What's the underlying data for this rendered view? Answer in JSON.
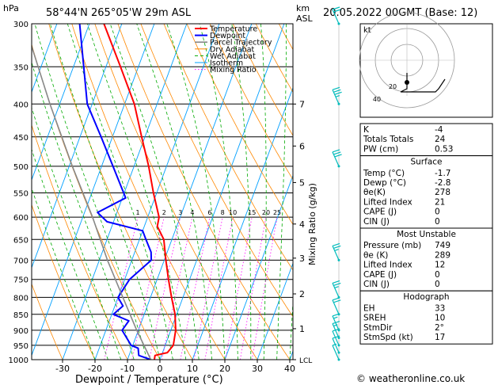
{
  "header": {
    "pressure_unit": "hPa",
    "location": "58°44'N 265°05'W 29m ASL",
    "km_label": "km",
    "asl_label": "ASL",
    "datetime": "20.05.2022 00GMT (Base: 12)"
  },
  "footer": {
    "credit": "© weatheronline.co.uk"
  },
  "colors": {
    "temperature": "#ff0000",
    "dewpoint": "#0000ff",
    "parcel": "#888888",
    "dry_adiabat": "#ff8800",
    "wet_adiabat": "#00aa00",
    "isotherm": "#00a0ff",
    "mixing_ratio": "#ff00ff",
    "wind": "#00bbbb"
  },
  "chart_data": {
    "type": "line",
    "title": "",
    "xlabel": "Dewpoint / Temperature (°C)",
    "ylabel_right": "Mixing Ratio (g/kg)",
    "x_range": [
      -35,
      40
    ],
    "y_range_hpa": [
      1000,
      300
    ],
    "y_scale": "log-pressure",
    "x_ticks": [
      -30,
      -20,
      -10,
      0,
      10,
      20,
      30,
      40
    ],
    "x_tick_labels": [
      "-30",
      "-20",
      "-10",
      "0",
      "10",
      "20",
      "30",
      "40"
    ],
    "pressure_levels": [
      300,
      350,
      400,
      450,
      500,
      550,
      600,
      650,
      700,
      750,
      800,
      850,
      900,
      950,
      1000
    ],
    "pressure_labels": [
      "300",
      "350",
      "400",
      "450",
      "500",
      "550",
      "600",
      "650",
      "700",
      "750",
      "800",
      "850",
      "900",
      "950",
      "1000"
    ],
    "km_ticks": [
      {
        "label": "7",
        "p": 400
      },
      {
        "label": "6",
        "p": 465
      },
      {
        "label": "5",
        "p": 530
      },
      {
        "label": "4",
        "p": 615
      },
      {
        "label": "3",
        "p": 695
      },
      {
        "label": "2",
        "p": 790
      },
      {
        "label": "1",
        "p": 895
      },
      {
        "label": "LCL",
        "p": 1000
      }
    ],
    "mixing_ratio_labels": [
      {
        "label": "1",
        "value": 1
      },
      {
        "label": "2",
        "value": 2
      },
      {
        "label": "3",
        "value": 3
      },
      {
        "label": "4",
        "value": 4
      },
      {
        "label": "6",
        "value": 6
      },
      {
        "label": "8",
        "value": 8
      },
      {
        "label": "10",
        "value": 10
      },
      {
        "label": "15",
        "value": 15
      },
      {
        "label": "20",
        "value": 20
      },
      {
        "label": "25",
        "value": 25
      }
    ],
    "legend": [
      "Temperature",
      "Dewpoint",
      "Parcel Trajectory",
      "Dry Adiabat",
      "Wet Adiabat",
      "Isotherm",
      "Mixing Ratio"
    ],
    "legend_position": "top-right",
    "series": [
      {
        "name": "Temperature",
        "points": [
          {
            "p": 1000,
            "t": -1.7
          },
          {
            "p": 985,
            "t": -2.0
          },
          {
            "p": 975,
            "t": 1.5
          },
          {
            "p": 950,
            "t": 2.5
          },
          {
            "p": 900,
            "t": 1.5
          },
          {
            "p": 850,
            "t": -0.5
          },
          {
            "p": 800,
            "t": -3.5
          },
          {
            "p": 750,
            "t": -6.5
          },
          {
            "p": 700,
            "t": -9.5
          },
          {
            "p": 650,
            "t": -12.5
          },
          {
            "p": 620,
            "t": -16.0
          },
          {
            "p": 600,
            "t": -16.5
          },
          {
            "p": 550,
            "t": -21.0
          },
          {
            "p": 500,
            "t": -25.5
          },
          {
            "p": 450,
            "t": -31.0
          },
          {
            "p": 400,
            "t": -37.0
          },
          {
            "p": 350,
            "t": -45.5
          },
          {
            "p": 300,
            "t": -55.5
          }
        ]
      },
      {
        "name": "Dewpoint",
        "points": [
          {
            "p": 1000,
            "t": -2.8
          },
          {
            "p": 985,
            "t": -7.0
          },
          {
            "p": 960,
            "t": -8.0
          },
          {
            "p": 950,
            "t": -10.5
          },
          {
            "p": 900,
            "t": -15.0
          },
          {
            "p": 870,
            "t": -14.0
          },
          {
            "p": 850,
            "t": -19.5
          },
          {
            "p": 825,
            "t": -17.5
          },
          {
            "p": 800,
            "t": -20.0
          },
          {
            "p": 750,
            "t": -18.5
          },
          {
            "p": 700,
            "t": -14.0
          },
          {
            "p": 680,
            "t": -15.0
          },
          {
            "p": 650,
            "t": -18.0
          },
          {
            "p": 630,
            "t": -20.0
          },
          {
            "p": 610,
            "t": -32.0
          },
          {
            "p": 590,
            "t": -36.0
          },
          {
            "p": 560,
            "t": -29.0
          },
          {
            "p": 500,
            "t": -36.5
          },
          {
            "p": 450,
            "t": -43.5
          },
          {
            "p": 400,
            "t": -51.5
          },
          {
            "p": 300,
            "t": -63.0
          }
        ]
      },
      {
        "name": "Parcel Trajectory",
        "points": [
          {
            "p": 1000,
            "t": -2.8
          },
          {
            "p": 900,
            "t": -10.5
          },
          {
            "p": 800,
            "t": -18.5
          },
          {
            "p": 700,
            "t": -27.5
          },
          {
            "p": 600,
            "t": -37.0
          },
          {
            "p": 500,
            "t": -49.0
          },
          {
            "p": 400,
            "t": -63.0
          },
          {
            "p": 300,
            "t": -80.0
          }
        ]
      }
    ],
    "wind_barbs": [
      {
        "p": 1000,
        "speed_kt": 5
      },
      {
        "p": 975,
        "speed_kt": 10
      },
      {
        "p": 950,
        "speed_kt": 10
      },
      {
        "p": 925,
        "speed_kt": 15
      },
      {
        "p": 900,
        "speed_kt": 15
      },
      {
        "p": 850,
        "speed_kt": 20
      },
      {
        "p": 800,
        "speed_kt": 25
      },
      {
        "p": 700,
        "speed_kt": 25
      },
      {
        "p": 500,
        "speed_kt": 30
      },
      {
        "p": 400,
        "speed_kt": 35
      },
      {
        "p": 300,
        "speed_kt": 20
      }
    ]
  },
  "hodograph": {
    "label": "kt",
    "ring_labels": [
      "20",
      "40"
    ],
    "points": [
      {
        "u": 0,
        "v": 3
      },
      {
        "u": 0,
        "v": -2
      },
      {
        "u": -2,
        "v": -3
      },
      {
        "u": 4,
        "v": -3
      },
      {
        "u": 9,
        "v": -3
      },
      {
        "u": 10,
        "v": -2
      },
      {
        "u": 12,
        "v": 1
      }
    ]
  },
  "indices": [
    {
      "label": "K",
      "value": "-4"
    },
    {
      "label": "Totals Totals",
      "value": "24"
    },
    {
      "label": "PW (cm)",
      "value": "0.53"
    }
  ],
  "surface": {
    "title": "Surface",
    "rows": [
      {
        "label": "Temp (°C)",
        "value": "-1.7"
      },
      {
        "label": "Dewp (°C)",
        "value": "-2.8"
      },
      {
        "label": "θe(K)",
        "value": "278"
      },
      {
        "label": "Lifted Index",
        "value": "21"
      },
      {
        "label": "CAPE (J)",
        "value": "0"
      },
      {
        "label": "CIN (J)",
        "value": "0"
      }
    ]
  },
  "most_unstable": {
    "title": "Most Unstable",
    "rows": [
      {
        "label": "Pressure (mb)",
        "value": "749"
      },
      {
        "label": "θe (K)",
        "value": "289"
      },
      {
        "label": "Lifted Index",
        "value": "12"
      },
      {
        "label": "CAPE (J)",
        "value": "0"
      },
      {
        "label": "CIN (J)",
        "value": "0"
      }
    ]
  },
  "hodograph_table": {
    "title": "Hodograph",
    "rows": [
      {
        "label": "EH",
        "value": "33"
      },
      {
        "label": "SREH",
        "value": "10"
      },
      {
        "label": "StmDir",
        "value": "2°"
      },
      {
        "label": "StmSpd (kt)",
        "value": "17"
      }
    ]
  }
}
